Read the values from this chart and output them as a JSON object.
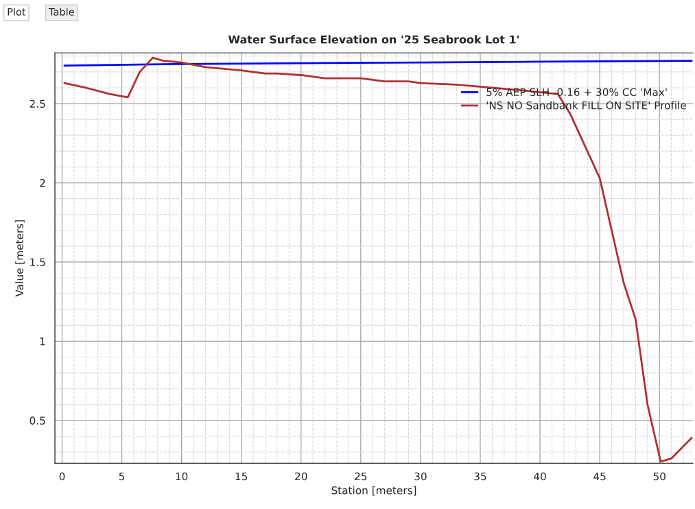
{
  "chart_data": {
    "type": "line",
    "title": "Water Surface Elevation on '25 Seabrook Lot 1'",
    "xlabel": "Station [meters]",
    "ylabel": "Value [meters]",
    "annotations": [
      "Plot",
      "Table"
    ],
    "xlim": [
      -0.6,
      52.8
    ],
    "ylim": [
      0.23,
      2.82
    ],
    "xticks": [
      0,
      5,
      10,
      15,
      20,
      25,
      30,
      35,
      40,
      45,
      50
    ],
    "yticks": [
      0.5,
      1,
      1.5,
      2,
      2.5
    ],
    "grid": true,
    "legend": "top right",
    "line_style": "solid",
    "marker": "none",
    "series": [
      {
        "name": "5% AEP SLH -0.16 + 30% CC 'Max'",
        "color": "#0000ff",
        "x": [
          0.2,
          10,
          20,
          30,
          40,
          52.7
        ],
        "values": [
          2.74,
          2.75,
          2.755,
          2.76,
          2.765,
          2.77
        ]
      },
      {
        "name": "'NS NO Sandbank FILL ON SITE' Profile",
        "color": "#b03030",
        "x": [
          0.2,
          2,
          4,
          5.5,
          6.5,
          7.6,
          8.5,
          10,
          12,
          15,
          17,
          18,
          20,
          22,
          25,
          27,
          29,
          30,
          33,
          36,
          39,
          41.5,
          42.5,
          45,
          47,
          48,
          49,
          50.1,
          51,
          52.7
        ],
        "values": [
          2.63,
          2.6,
          2.56,
          2.54,
          2.7,
          2.79,
          2.77,
          2.76,
          2.73,
          2.71,
          2.69,
          2.69,
          2.68,
          2.66,
          2.66,
          2.64,
          2.64,
          2.63,
          2.62,
          2.6,
          2.58,
          2.56,
          2.44,
          2.03,
          1.37,
          1.14,
          0.6,
          0.24,
          0.26,
          0.39
        ]
      }
    ]
  }
}
